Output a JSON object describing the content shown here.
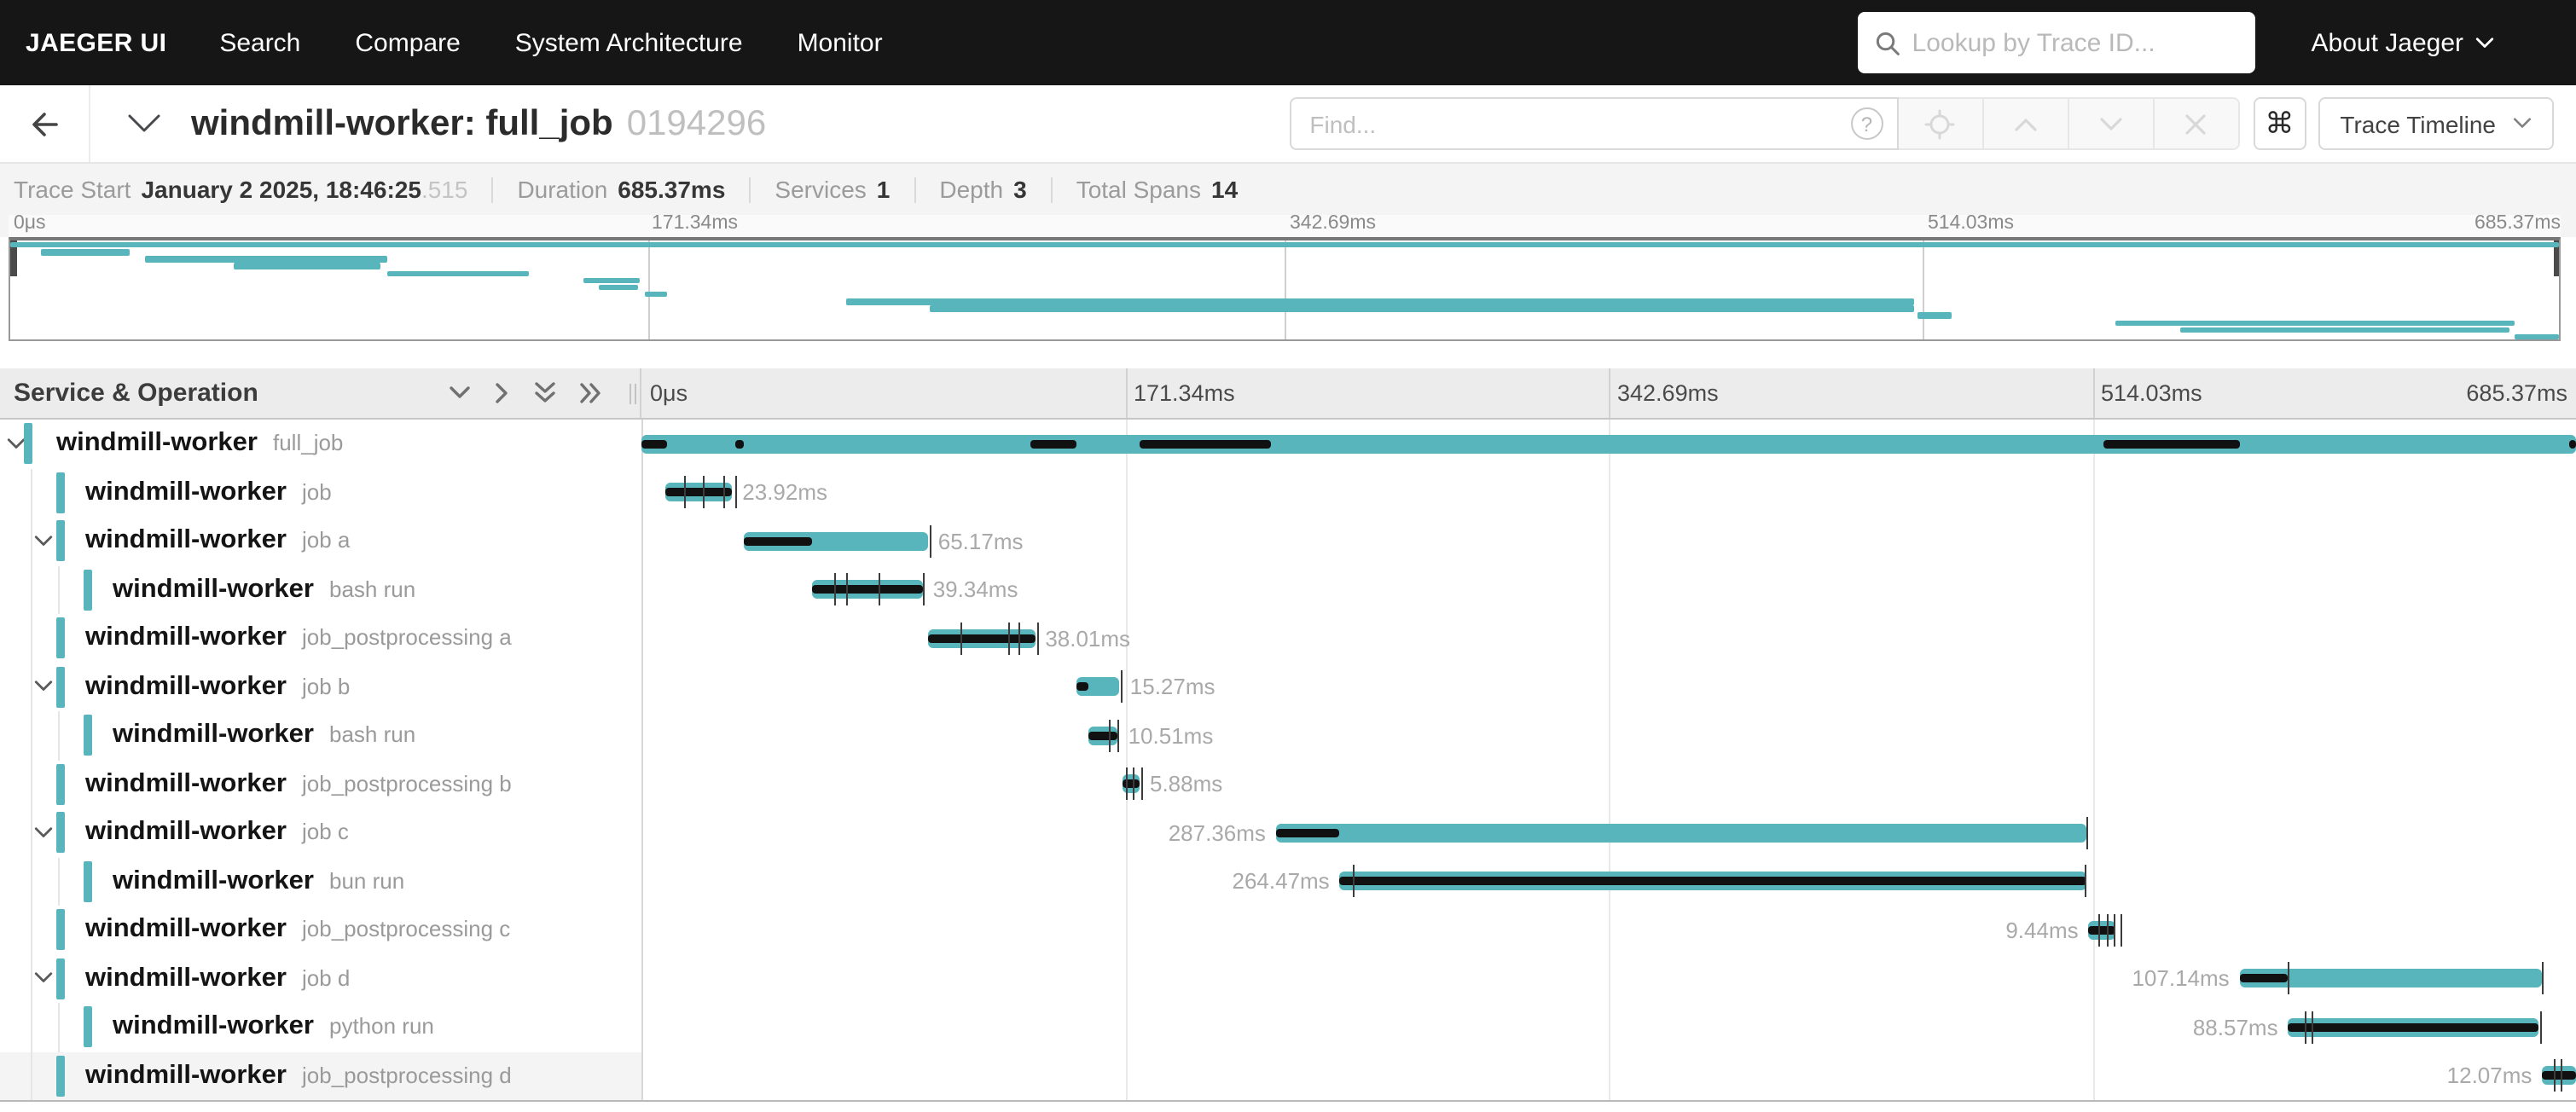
{
  "colors": {
    "accent": "#58b5bb",
    "critical_path": "#111111",
    "nav_background": "#161616"
  },
  "nav": {
    "brand": "JAEGER UI",
    "items": [
      "Search",
      "Compare",
      "System Architecture",
      "Monitor"
    ],
    "lookup_placeholder": "Lookup by Trace ID...",
    "about_label": "About Jaeger"
  },
  "header": {
    "title": "windmill-worker: full_job",
    "trace_id": "0194296",
    "find_placeholder": "Find...",
    "help_glyph": "?",
    "shortcuts_glyph": "⌘",
    "view_options_label": "Trace Timeline"
  },
  "summary": {
    "items": [
      {
        "label": "Trace Start",
        "value": "January 2 2025, 18:46:25",
        "suffix": ".515"
      },
      {
        "label": "Duration",
        "value": "685.37ms",
        "suffix": ""
      },
      {
        "label": "Services",
        "value": "1",
        "suffix": ""
      },
      {
        "label": "Depth",
        "value": "3",
        "suffix": ""
      },
      {
        "label": "Total Spans",
        "value": "14",
        "suffix": ""
      }
    ]
  },
  "timeline": {
    "left_header": "Service & Operation",
    "duration_ms": 685.37,
    "scale_ticks": [
      "0μs",
      "171.34ms",
      "342.69ms",
      "514.03ms",
      "685.37ms"
    ],
    "spans": [
      {
        "service": "windmill-worker",
        "operation": "full_job",
        "depth": 0,
        "expandable": true,
        "start_ms": 0,
        "duration_ms": 685.37,
        "duration_label": "",
        "label_side": "none",
        "critical_ms": [
          [
            0,
            9
          ],
          [
            33,
            36.3
          ],
          [
            137.8,
            154.2
          ],
          [
            176.5,
            222.8
          ],
          [
            518.2,
            566.2
          ],
          [
            683,
            685.37
          ]
        ],
        "log_ticks_ms": [],
        "hover": false
      },
      {
        "service": "windmill-worker",
        "operation": "job",
        "depth": 1,
        "expandable": false,
        "start_ms": 8.2,
        "duration_ms": 23.92,
        "duration_label": "23.92ms",
        "label_side": "right",
        "critical_ms": [
          [
            8.2,
            32.1
          ]
        ],
        "log_ticks_ms": [
          15,
          22,
          28.8,
          33.5
        ],
        "hover": false
      },
      {
        "service": "windmill-worker",
        "operation": "job a",
        "depth": 1,
        "expandable": true,
        "start_ms": 36.3,
        "duration_ms": 65.17,
        "duration_label": "65.17ms",
        "label_side": "right",
        "critical_ms": [
          [
            36.3,
            60.3
          ]
        ],
        "log_ticks_ms": [
          102.3
        ],
        "hover": false
      },
      {
        "service": "windmill-worker",
        "operation": "bash run",
        "depth": 2,
        "expandable": false,
        "start_ms": 60.3,
        "duration_ms": 39.34,
        "duration_label": "39.34ms",
        "label_side": "right",
        "critical_ms": [
          [
            60.3,
            99.6
          ]
        ],
        "log_ticks_ms": [
          68.5,
          72.6,
          84.3,
          99.8
        ],
        "hover": false
      },
      {
        "service": "windmill-worker",
        "operation": "job_postprocessing a",
        "depth": 1,
        "expandable": false,
        "start_ms": 101.4,
        "duration_ms": 38.01,
        "duration_label": "38.01ms",
        "label_side": "right",
        "critical_ms": [
          [
            101.4,
            139.4
          ]
        ],
        "log_ticks_ms": [
          113,
          130,
          133.6,
          140.2
        ],
        "hover": false
      },
      {
        "service": "windmill-worker",
        "operation": "job b",
        "depth": 1,
        "expandable": true,
        "start_ms": 154.2,
        "duration_ms": 15.27,
        "duration_label": "15.27ms",
        "label_side": "right",
        "critical_ms": [
          [
            154.2,
            158.3
          ]
        ],
        "log_ticks_ms": [
          169.8
        ],
        "hover": false
      },
      {
        "service": "windmill-worker",
        "operation": "bash run",
        "depth": 2,
        "expandable": false,
        "start_ms": 158.3,
        "duration_ms": 10.51,
        "duration_label": "10.51ms",
        "label_side": "right",
        "critical_ms": [
          [
            158.3,
            168.8
          ]
        ],
        "log_ticks_ms": [
          165.9,
          168.6
        ],
        "hover": false
      },
      {
        "service": "windmill-worker",
        "operation": "job_postprocessing b",
        "depth": 1,
        "expandable": false,
        "start_ms": 170.6,
        "duration_ms": 5.88,
        "duration_label": "5.88ms",
        "label_side": "right",
        "critical_ms": [
          [
            170.6,
            176.5
          ]
        ],
        "log_ticks_ms": [
          171.4,
          174.1,
          176.8
        ],
        "hover": false
      },
      {
        "service": "windmill-worker",
        "operation": "job c",
        "depth": 1,
        "expandable": true,
        "start_ms": 224.8,
        "duration_ms": 287.36,
        "duration_label": "287.36ms",
        "label_side": "left",
        "critical_ms": [
          [
            224.8,
            247.4
          ]
        ],
        "log_ticks_ms": [
          511.8
        ],
        "hover": false
      },
      {
        "service": "windmill-worker",
        "operation": "bun run",
        "depth": 2,
        "expandable": false,
        "start_ms": 247.4,
        "duration_ms": 264.47,
        "duration_label": "264.47ms",
        "label_side": "left",
        "critical_ms": [
          [
            247.4,
            511.9
          ]
        ],
        "log_ticks_ms": [
          252.2,
          511.4
        ],
        "hover": false
      },
      {
        "service": "windmill-worker",
        "operation": "job_postprocessing c",
        "depth": 1,
        "expandable": false,
        "start_ms": 512.7,
        "duration_ms": 9.44,
        "duration_label": "9.44ms",
        "label_side": "left",
        "critical_ms": [
          [
            512.7,
            522.1
          ]
        ],
        "log_ticks_ms": [
          516.1,
          518.9,
          521.6,
          523.7
        ],
        "hover": false
      },
      {
        "service": "windmill-worker",
        "operation": "job d",
        "depth": 1,
        "expandable": true,
        "start_ms": 566.2,
        "duration_ms": 107.14,
        "duration_label": "107.14ms",
        "label_side": "left",
        "critical_ms": [
          [
            566.2,
            583.4
          ]
        ],
        "log_ticks_ms": [
          583.4,
          673.3
        ],
        "hover": false
      },
      {
        "service": "windmill-worker",
        "operation": "python run",
        "depth": 2,
        "expandable": false,
        "start_ms": 583.4,
        "duration_ms": 88.57,
        "duration_label": "88.57ms",
        "label_side": "left",
        "critical_ms": [
          [
            583.4,
            672
          ]
        ],
        "log_ticks_ms": [
          589.4,
          591.5,
          672.4
        ],
        "hover": false
      },
      {
        "service": "windmill-worker",
        "operation": "job_postprocessing d",
        "depth": 1,
        "expandable": false,
        "start_ms": 673.4,
        "duration_ms": 12.07,
        "duration_label": "12.07ms",
        "label_side": "left",
        "critical_ms": [
          [
            673.4,
            685.37
          ]
        ],
        "log_ticks_ms": [
          677.8,
          679.9
        ],
        "hover": true
      }
    ]
  }
}
